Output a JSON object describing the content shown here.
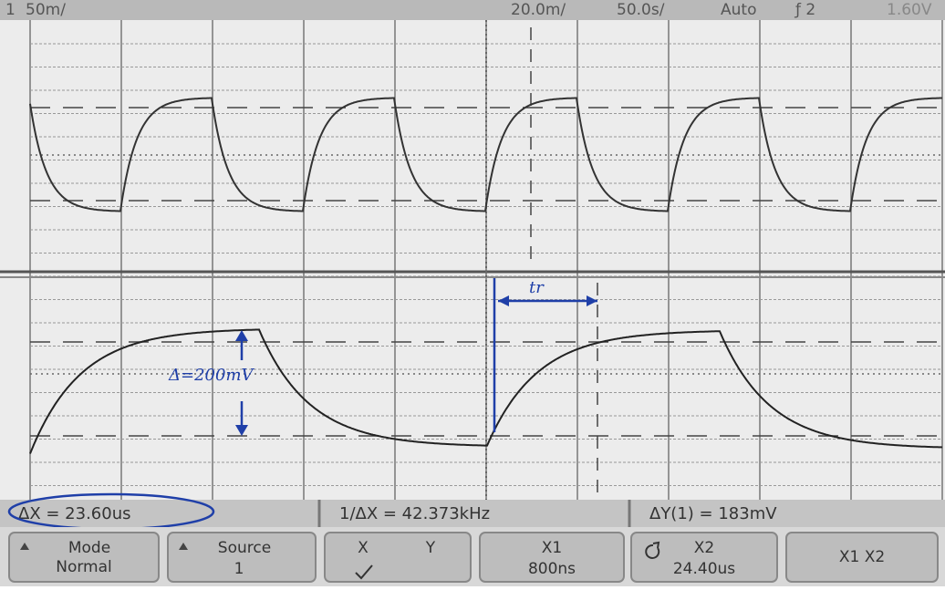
{
  "top_bar": {
    "channel": "1",
    "channel_scale": "50m/",
    "second_scale": "20.0m/",
    "timebase": "50.0s/",
    "trigger_mode": "Auto",
    "trigger_source": "ƒ 2",
    "trigger_level": "1.60V"
  },
  "annotations": {
    "rise_time": "tr",
    "delta": "Δ=200mV"
  },
  "measurements": {
    "delta_x": "ΔX = 23.60us",
    "inverse_delta_x": "1/ΔX = 42.373kHz",
    "delta_y": "ΔY(1) = 183mV"
  },
  "softkeys": {
    "mode": {
      "label": "Mode",
      "value": "Normal"
    },
    "source": {
      "label": "Source",
      "value": "1"
    },
    "xy": {
      "left": "X",
      "right": "Y"
    },
    "x1": {
      "label": "X1",
      "value": "800ns"
    },
    "x2": {
      "label": "X2",
      "value": "24.40us"
    },
    "x1x2": {
      "label": "X1 X2"
    }
  }
}
